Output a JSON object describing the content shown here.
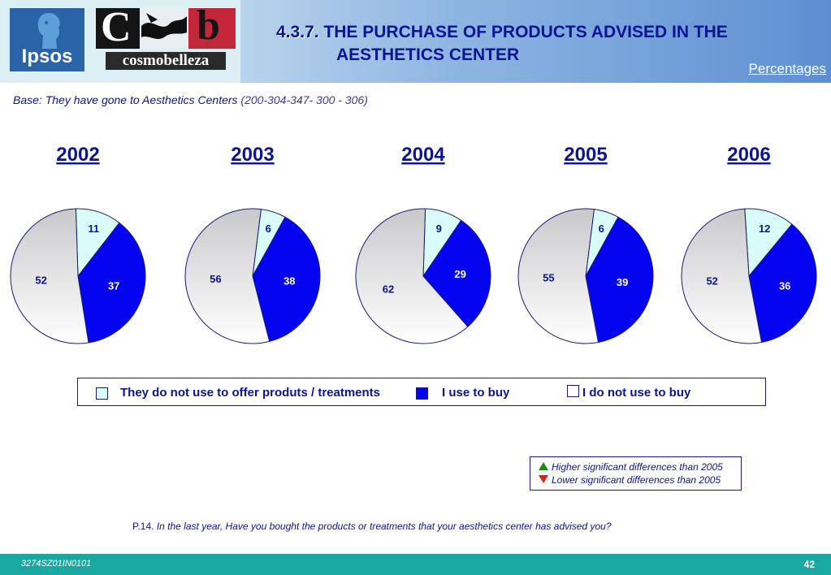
{
  "header": {
    "logo_ipsos": "Ipsos",
    "logo_cosmo": "cosmobelleza",
    "title_number": "4.3.7.",
    "title_line1": "THE PURCHASE OF PRODUCTS ADVISED IN THE",
    "title_line2": "AESTHETICS CENTER",
    "percentages_label": "Percentages"
  },
  "base": {
    "text": "Base: They have gone to Aesthetics Centers",
    "codes": "(200-304-347- 300 - 306)"
  },
  "colors": {
    "not_offer": "#d9fcfb",
    "use_to_buy": "#0404f0",
    "not_buy": "#d6d6d9",
    "text_blue": "#0b1494"
  },
  "chart_data": {
    "type": "pie",
    "unit": "Percentages",
    "categories": [
      "They do not use to offer produts / treatments",
      "I use to buy",
      "I do not use to buy"
    ],
    "charts": [
      {
        "title": "2002",
        "values": [
          11,
          37,
          52
        ]
      },
      {
        "title": "2003",
        "values": [
          6,
          38,
          56
        ]
      },
      {
        "title": "2004",
        "values": [
          9,
          29,
          62
        ]
      },
      {
        "title": "2005",
        "values": [
          6,
          39,
          55
        ]
      },
      {
        "title": "2006",
        "values": [
          12,
          36,
          52
        ]
      }
    ],
    "legend_position": "bottom"
  },
  "legend": {
    "items": [
      {
        "label": "They do not use to offer produts / treatments"
      },
      {
        "label": "I use to buy"
      },
      {
        "label": "I do not use to buy"
      }
    ]
  },
  "significance": {
    "higher": "Higher significant differences than 2005",
    "lower": "Lower significant differences than 2005"
  },
  "question": {
    "code": "P.14.",
    "text": "In the last year, Have you bought the products or treatments that your aesthetics center has advised you?"
  },
  "footer": {
    "code": "3274SZ01IN0101",
    "page": "42"
  }
}
